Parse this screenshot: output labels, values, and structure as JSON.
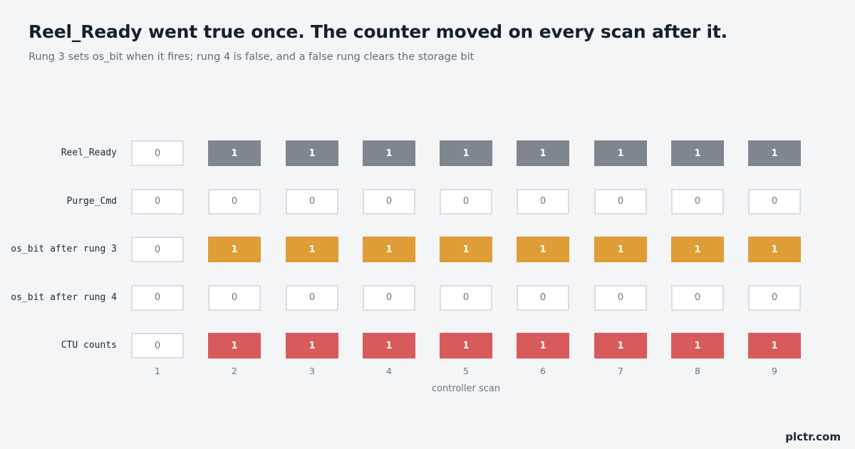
{
  "header": {
    "title": "Reel_Ready went true once. The counter moved on every scan after it.",
    "subtitle": "Rung 3 sets os_bit when it fires; rung 4 is false, and a false rung clears the storage bit"
  },
  "brand": "plctr.com",
  "chart_data": {
    "type": "heatmap",
    "xlabel": "controller scan",
    "x": [
      "1",
      "2",
      "3",
      "4",
      "5",
      "6",
      "7",
      "8",
      "9"
    ],
    "series": [
      {
        "name": "Reel_Ready",
        "values": [
          0,
          1,
          1,
          1,
          1,
          1,
          1,
          1,
          1
        ],
        "color": "#80868e"
      },
      {
        "name": "Purge_Cmd",
        "values": [
          0,
          0,
          0,
          0,
          0,
          0,
          0,
          0,
          0
        ],
        "color": "#80868e"
      },
      {
        "name": "os_bit after rung 3",
        "values": [
          0,
          1,
          1,
          1,
          1,
          1,
          1,
          1,
          1
        ],
        "color": "#de9d36"
      },
      {
        "name": "os_bit after rung 4",
        "values": [
          0,
          0,
          0,
          0,
          0,
          0,
          0,
          0,
          0
        ],
        "color": "#de9d36"
      },
      {
        "name": "CTU counts",
        "values": [
          0,
          1,
          1,
          1,
          1,
          1,
          1,
          1,
          1
        ],
        "color": "#d95a5b"
      }
    ],
    "grid": false,
    "legend": "none"
  }
}
